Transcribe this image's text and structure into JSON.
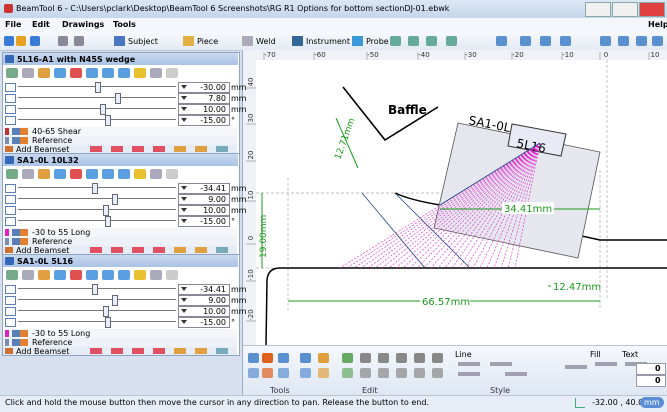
{
  "window_title": "BeamTool 6 - C:\\Users\\pclark\\Desktop\\BeamTool 6 Screenshots\\RG R1 Options for bottom sectionDJ-01.ebwk",
  "menu": [
    "File",
    "Edit",
    "Drawings",
    "Tools"
  ],
  "help": "Help",
  "toolbar": [
    "Subject",
    "Piece",
    "Weld",
    "Instrument",
    "Probe"
  ],
  "panels": [
    {
      "title": "5L16-A1 with N45S wedge",
      "fields": [
        {
          "value": "-30.00",
          "unit": "mm"
        },
        {
          "value": "7.80",
          "unit": "mm"
        },
        {
          "value": "10.00",
          "unit": "mm"
        },
        {
          "value": "-15.00",
          "unit": "°"
        }
      ],
      "beamsets": [
        "40-65 Shear",
        "Reference"
      ],
      "add": "Add Beamset"
    },
    {
      "title": "SA1-0L 10L32",
      "fields": [
        {
          "value": "-34.41",
          "unit": "mm"
        },
        {
          "value": "9.00",
          "unit": "mm"
        },
        {
          "value": "10.00",
          "unit": "mm"
        },
        {
          "value": "-15.00",
          "unit": "°"
        }
      ],
      "beamsets": [
        "-30 to 55 Long",
        "Reference"
      ],
      "add": "Add Beamset"
    },
    {
      "title": "SA1-0L 5L16",
      "fields": [
        {
          "value": "-34.41",
          "unit": "mm"
        },
        {
          "value": "9.00",
          "unit": "mm"
        },
        {
          "value": "10.00",
          "unit": "mm"
        },
        {
          "value": "-15.00",
          "unit": "°"
        }
      ],
      "beamsets": [
        "-30 to 55 Long",
        "Reference"
      ],
      "add": "Add Beamset"
    }
  ],
  "ruler_top": [
    "-70",
    "-60",
    "-50",
    "-40",
    "-30",
    "-20",
    "-10",
    "0",
    "10"
  ],
  "ruler_left": [
    "40",
    "30",
    "20",
    "10",
    "0",
    "-10",
    "-20"
  ],
  "drawing": {
    "baffle": "Baffle",
    "probe_name": "SA1-0L",
    "probe_label": "5L16",
    "dims": [
      "12.71mm",
      "19.00mm",
      "34.41mm",
      "66.57mm",
      "12.47mm"
    ]
  },
  "ribbon": {
    "groups": [
      "Tools",
      "Edit",
      "Style"
    ],
    "line": "Line",
    "fill": "Fill",
    "text": "Text",
    "values": [
      "0",
      "0"
    ]
  },
  "status": {
    "message": "Click and hold the mouse button then move the cursor in any direction to pan. Release the button to end.",
    "coords": "-32.00 , 40.00",
    "unit": "mm"
  }
}
